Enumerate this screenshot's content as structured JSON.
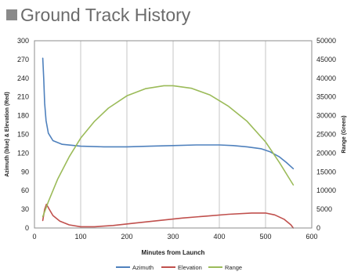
{
  "page": {
    "title": "Ground Track History"
  },
  "chart_data": {
    "type": "line",
    "title": "Ground Track History",
    "xlabel": "Minutes from Launch",
    "ylabel_left": "Azimuth (blue) & Elevation (Red)",
    "ylabel_right": "Range (Green)",
    "xlim": [
      0,
      600
    ],
    "ylim_left": [
      0,
      300
    ],
    "ylim_right": [
      0,
      50000
    ],
    "x_ticks": [
      "0",
      "100",
      "200",
      "300",
      "400",
      "500",
      "600"
    ],
    "y_left_ticks": [
      "0",
      "30",
      "60",
      "90",
      "120",
      "150",
      "180",
      "210",
      "240",
      "270",
      "300"
    ],
    "y_right_ticks": [
      "0",
      "5000",
      "10000",
      "15000",
      "20000",
      "25000",
      "30000",
      "35000",
      "40000",
      "45000",
      "50000"
    ],
    "grid": "vertical",
    "legend_position": "bottom",
    "series": [
      {
        "name": "Azimuth",
        "axis": "left",
        "color": "#4f81bd",
        "points": [
          [
            18,
            272
          ],
          [
            20,
            240
          ],
          [
            22,
            200
          ],
          [
            25,
            172
          ],
          [
            30,
            152
          ],
          [
            40,
            140
          ],
          [
            60,
            134
          ],
          [
            100,
            131
          ],
          [
            150,
            130
          ],
          [
            200,
            130
          ],
          [
            250,
            131
          ],
          [
            300,
            132
          ],
          [
            350,
            133
          ],
          [
            400,
            133
          ],
          [
            430,
            132
          ],
          [
            460,
            130
          ],
          [
            490,
            127
          ],
          [
            510,
            122
          ],
          [
            530,
            114
          ],
          [
            545,
            105
          ],
          [
            560,
            95
          ]
        ]
      },
      {
        "name": "Elevation",
        "axis": "left",
        "color": "#c0504d",
        "points": [
          [
            18,
            12
          ],
          [
            22,
            30
          ],
          [
            26,
            38
          ],
          [
            32,
            30
          ],
          [
            40,
            20
          ],
          [
            55,
            11
          ],
          [
            75,
            5
          ],
          [
            100,
            2
          ],
          [
            130,
            2
          ],
          [
            170,
            4
          ],
          [
            220,
            8
          ],
          [
            270,
            12
          ],
          [
            320,
            16
          ],
          [
            370,
            19
          ],
          [
            420,
            22
          ],
          [
            470,
            24
          ],
          [
            500,
            24
          ],
          [
            520,
            21
          ],
          [
            540,
            14
          ],
          [
            555,
            5
          ],
          [
            560,
            0
          ]
        ]
      },
      {
        "name": "Range",
        "axis": "right",
        "color": "#9bbb59",
        "points": [
          [
            18,
            3000
          ],
          [
            30,
            7000
          ],
          [
            50,
            13000
          ],
          [
            75,
            19000
          ],
          [
            100,
            24000
          ],
          [
            130,
            28500
          ],
          [
            160,
            32000
          ],
          [
            200,
            35300
          ],
          [
            240,
            37200
          ],
          [
            280,
            38000
          ],
          [
            300,
            38000
          ],
          [
            340,
            37300
          ],
          [
            380,
            35500
          ],
          [
            420,
            32500
          ],
          [
            460,
            28500
          ],
          [
            500,
            23000
          ],
          [
            530,
            17500
          ],
          [
            550,
            13500
          ],
          [
            560,
            11500
          ]
        ]
      }
    ]
  }
}
